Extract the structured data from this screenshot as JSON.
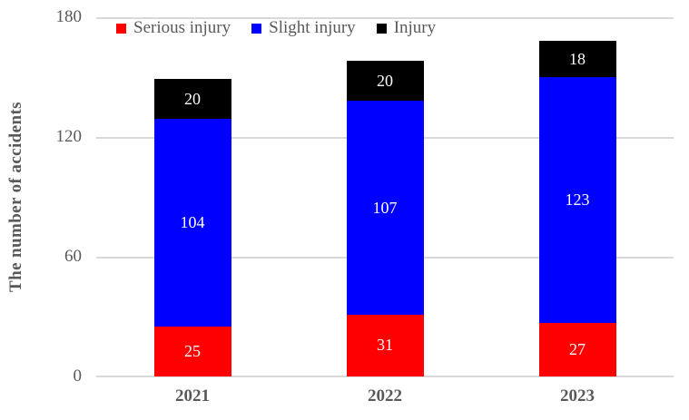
{
  "chart_data": {
    "type": "bar",
    "stacked": true,
    "title": "",
    "xlabel": "",
    "ylabel": "The number of accidents",
    "categories": [
      "2021",
      "2022",
      "2023"
    ],
    "series": [
      {
        "name": "Serious injury",
        "color": "#ff0000",
        "values": [
          25,
          31,
          27
        ]
      },
      {
        "name": "Slight injury",
        "color": "#0000ff",
        "values": [
          104,
          107,
          123
        ]
      },
      {
        "name": "Injury",
        "color": "#000000",
        "values": [
          20,
          20,
          18
        ]
      }
    ],
    "totals": [
      149,
      158,
      168
    ],
    "ylim": [
      0,
      180
    ],
    "yticks": [
      0,
      60,
      120,
      180
    ],
    "grid": true,
    "legend_position": "top",
    "value_labels": "inside-center"
  },
  "colors": {
    "axis_text": "#595959",
    "gridline": "#d9d9d9",
    "bar_value_label": "#ffffff",
    "background": "#ffffff"
  }
}
